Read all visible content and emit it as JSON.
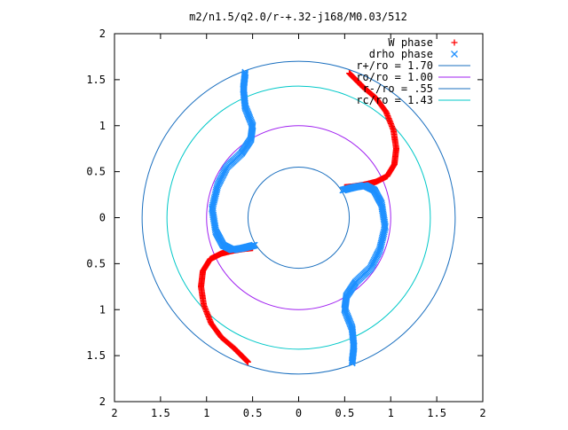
{
  "chart_data": {
    "type": "scatter",
    "title": "m2/n1.5/q2.0/r-+.32-j168/M0.03/512",
    "xlabel": "",
    "ylabel": "",
    "xlim": [
      -2,
      2
    ],
    "ylim": [
      -2,
      2
    ],
    "x_ticks": [
      -2,
      -1.5,
      -1,
      -0.5,
      0,
      0.5,
      1,
      1.5,
      2
    ],
    "y_ticks": [
      -2,
      -1.5,
      -1,
      -0.5,
      0,
      0.5,
      1,
      1.5,
      2
    ],
    "x_tick_labels": [
      "2",
      "1.5",
      "1",
      "0.5",
      "0",
      "0.5",
      "1",
      "1.5",
      "2"
    ],
    "y_tick_labels": [
      "2",
      "1.5",
      "1",
      "0.5",
      "0",
      "0.5",
      "1",
      "1.5",
      "2"
    ],
    "grid": false,
    "legend_placement": "top-right",
    "series": [
      {
        "name": "W phase",
        "marker": "plus",
        "color": "#ff0000",
        "arms": [
          [
            [
              0.55,
              1.57
            ],
            [
              0.62,
              1.5
            ],
            [
              0.7,
              1.42
            ],
            [
              0.84,
              1.3
            ],
            [
              0.95,
              1.15
            ],
            [
              1.03,
              0.95
            ],
            [
              1.06,
              0.75
            ],
            [
              1.04,
              0.58
            ],
            [
              0.96,
              0.45
            ],
            [
              0.84,
              0.39
            ],
            [
              0.72,
              0.36
            ],
            [
              0.6,
              0.34
            ],
            [
              0.5,
              0.33
            ]
          ],
          [
            [
              -0.5,
              -0.33
            ],
            [
              -0.6,
              -0.34
            ],
            [
              -0.72,
              -0.36
            ],
            [
              -0.84,
              -0.39
            ],
            [
              -0.96,
              -0.45
            ],
            [
              -1.04,
              -0.58
            ],
            [
              -1.06,
              -0.75
            ],
            [
              -1.03,
              -0.95
            ],
            [
              -0.95,
              -1.15
            ],
            [
              -0.84,
              -1.3
            ],
            [
              -0.7,
              -1.42
            ],
            [
              -0.62,
              -1.5
            ],
            [
              -0.55,
              -1.57
            ]
          ]
        ]
      },
      {
        "name": "drho phase",
        "marker": "cross",
        "color": "#1e90ff",
        "arms": [
          [
            [
              -0.58,
              1.58
            ],
            [
              -0.6,
              1.4
            ],
            [
              -0.58,
              1.2
            ],
            [
              -0.5,
              1.0
            ],
            [
              -0.52,
              0.85
            ],
            [
              -0.62,
              0.7
            ],
            [
              -0.78,
              0.55
            ],
            [
              -0.88,
              0.35
            ],
            [
              -0.94,
              0.1
            ],
            [
              -0.9,
              -0.15
            ],
            [
              -0.82,
              -0.3
            ],
            [
              -0.72,
              -0.35
            ],
            [
              -0.6,
              -0.33
            ],
            [
              -0.48,
              -0.3
            ]
          ],
          [
            [
              0.58,
              -1.58
            ],
            [
              0.6,
              -1.4
            ],
            [
              0.58,
              -1.2
            ],
            [
              0.5,
              -1.0
            ],
            [
              0.52,
              -0.85
            ],
            [
              0.62,
              -0.7
            ],
            [
              0.78,
              -0.55
            ],
            [
              0.88,
              -0.35
            ],
            [
              0.94,
              -0.1
            ],
            [
              0.9,
              0.15
            ],
            [
              0.82,
              0.3
            ],
            [
              0.72,
              0.35
            ],
            [
              0.6,
              0.33
            ],
            [
              0.48,
              0.3
            ]
          ]
        ]
      },
      {
        "name": "r+/ro = 1.70",
        "type": "circle",
        "radius": 1.7,
        "color": "#1a6fbf"
      },
      {
        "name": "ro/ro = 1.00",
        "type": "circle",
        "radius": 1.0,
        "color": "#a020f0"
      },
      {
        "name": "r-/ro = .55",
        "type": "circle",
        "radius": 0.55,
        "color": "#1a6fbf"
      },
      {
        "name": "rc/ro = 1.43",
        "type": "circle",
        "radius": 1.43,
        "color": "#00c8c8"
      }
    ]
  }
}
